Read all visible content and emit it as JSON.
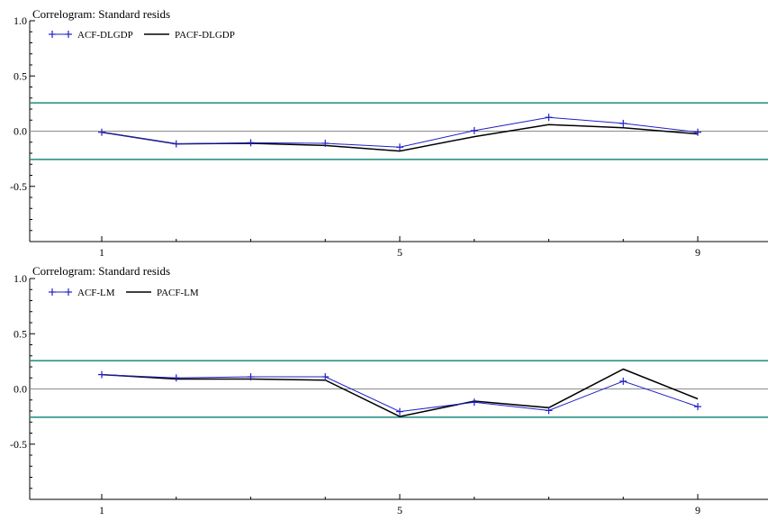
{
  "colors": {
    "acf": "#1f1fc8",
    "pacf": "#000000",
    "band": "#1a8a80",
    "zero_line": "#8c8c8c",
    "axis": "#000000"
  },
  "chart_data": [
    {
      "type": "line",
      "title": "Correlogram: Standard resids",
      "x": [
        1,
        2,
        3,
        4,
        5,
        6,
        7,
        8,
        9
      ],
      "x_tick_labels": [
        "1",
        "5",
        "9"
      ],
      "x_tick_values": [
        1,
        5,
        9
      ],
      "ylim": [
        -1.0,
        1.0
      ],
      "y_tick_labels": [
        "1.0",
        "0.5",
        "0.0",
        "-0.5"
      ],
      "y_tick_values": [
        1.0,
        0.5,
        0.0,
        -0.5
      ],
      "confidence_band": [
        0.256,
        -0.256
      ],
      "legend_position": "top-left",
      "series": [
        {
          "name": "ACF-DLGDP",
          "values": [
            -0.01,
            -0.115,
            -0.105,
            -0.11,
            -0.145,
            0.005,
            0.125,
            0.07,
            -0.01
          ],
          "marker": "plus"
        },
        {
          "name": "PACF-DLGDP",
          "values": [
            -0.01,
            -0.115,
            -0.11,
            -0.13,
            -0.18,
            -0.05,
            0.06,
            0.03,
            -0.025
          ],
          "marker": "none"
        }
      ]
    },
    {
      "type": "line",
      "title": "Correlogram: Standard resids",
      "x": [
        1,
        2,
        3,
        4,
        5,
        6,
        7,
        8,
        9
      ],
      "x_tick_labels": [
        "1",
        "5",
        "9"
      ],
      "x_tick_values": [
        1,
        5,
        9
      ],
      "ylim": [
        -1.0,
        1.0
      ],
      "y_tick_labels": [
        "1.0",
        "0.5",
        "0.0",
        "-0.5"
      ],
      "y_tick_values": [
        1.0,
        0.5,
        0.0,
        -0.5
      ],
      "confidence_band": [
        0.256,
        -0.256
      ],
      "legend_position": "top-left",
      "series": [
        {
          "name": "ACF-LM",
          "values": [
            0.13,
            0.1,
            0.11,
            0.11,
            -0.205,
            -0.12,
            -0.195,
            0.07,
            -0.16
          ],
          "marker": "plus"
        },
        {
          "name": "PACF-LM",
          "values": [
            0.13,
            0.09,
            0.09,
            0.08,
            -0.25,
            -0.11,
            -0.17,
            0.18,
            -0.09
          ],
          "marker": "none"
        }
      ]
    }
  ]
}
